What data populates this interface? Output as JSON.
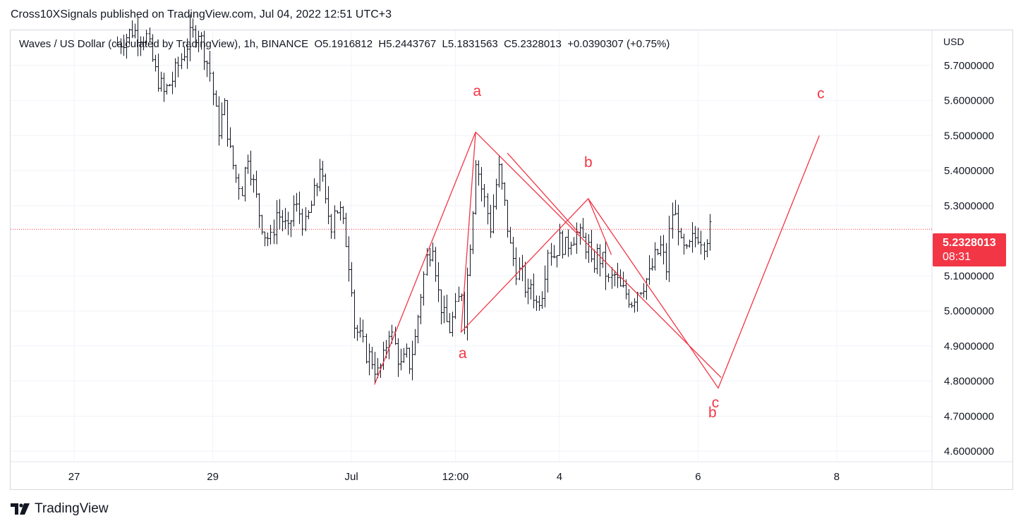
{
  "publisher": "Cross10XSignals published on TradingView.com, Jul 04, 2022 12:51 UTC+3",
  "legend": {
    "symbol": "Waves / US Dollar (calculated by TradingView), 1h, BINANCE",
    "open": "O5.1916812",
    "high": "H5.2443767",
    "low": "L5.1831563",
    "close": "C5.2328013",
    "change": "+0.0390307 (+0.75%)"
  },
  "currency": "USD",
  "last_price": "5.2328013",
  "countdown": "08:31",
  "brand": "TradingView",
  "colors": {
    "drawing": "#f23645",
    "candle": "#131722",
    "grid": "#f0f3fa",
    "price_line": "#f23645"
  },
  "chart_data": {
    "type": "bar",
    "style": "ohlc",
    "interval": "1h",
    "y_ticks": [
      "5.7000000",
      "5.6000000",
      "5.5000000",
      "5.4000000",
      "5.3000000",
      "5.1000000",
      "5.0000000",
      "4.9000000",
      "4.8000000",
      "4.7000000",
      "4.6000000"
    ],
    "y_tick_values": [
      5.7,
      5.6,
      5.5,
      5.4,
      5.3,
      5.1,
      5.0,
      4.9,
      4.8,
      4.7,
      4.6
    ],
    "x_ticks": [
      "27",
      "29",
      "Jul",
      "12:00",
      "4",
      "6",
      "8"
    ],
    "x_tick_index": [
      0,
      48,
      96,
      132,
      168,
      216,
      264
    ],
    "ylim": [
      4.57,
      5.8
    ],
    "xlim": [
      -22,
      297
    ],
    "price_line": 5.2328013,
    "close_path": [
      [
        15,
        5.76
      ],
      [
        20,
        5.8
      ],
      [
        25,
        5.78
      ],
      [
        28,
        5.68
      ],
      [
        31,
        5.62
      ],
      [
        34,
        5.66
      ],
      [
        37,
        5.72
      ],
      [
        40,
        5.78
      ],
      [
        43,
        5.8
      ],
      [
        45,
        5.74
      ],
      [
        47,
        5.68
      ],
      [
        49,
        5.56
      ],
      [
        50,
        5.52
      ],
      [
        52,
        5.58
      ],
      [
        54,
        5.45
      ],
      [
        56,
        5.38
      ],
      [
        58,
        5.35
      ],
      [
        60,
        5.45
      ],
      [
        62,
        5.36
      ],
      [
        64,
        5.28
      ],
      [
        66,
        5.22
      ],
      [
        68,
        5.2
      ],
      [
        70,
        5.28
      ],
      [
        72,
        5.26
      ],
      [
        74,
        5.22
      ],
      [
        76,
        5.3
      ],
      [
        78,
        5.28
      ],
      [
        80,
        5.24
      ],
      [
        82,
        5.3
      ],
      [
        84,
        5.36
      ],
      [
        85,
        5.42
      ],
      [
        87,
        5.3
      ],
      [
        89,
        5.25
      ],
      [
        90,
        5.3
      ],
      [
        92,
        5.28
      ],
      [
        94,
        5.2
      ],
      [
        96,
        5.08
      ],
      [
        97,
        4.96
      ],
      [
        99,
        4.92
      ],
      [
        101,
        4.88
      ],
      [
        103,
        4.86
      ],
      [
        105,
        4.82
      ],
      [
        107,
        4.86
      ],
      [
        109,
        4.95
      ],
      [
        111,
        4.9
      ],
      [
        113,
        4.84
      ],
      [
        115,
        4.87
      ],
      [
        116,
        4.85
      ],
      [
        118,
        4.92
      ],
      [
        120,
        5.05
      ],
      [
        122,
        5.15
      ],
      [
        124,
        5.2
      ],
      [
        126,
        5.05
      ],
      [
        128,
        4.98
      ],
      [
        130,
        4.95
      ],
      [
        132,
        5.0
      ],
      [
        134,
        5.06
      ],
      [
        135,
        4.98
      ],
      [
        136,
        5.1
      ],
      [
        138,
        5.3
      ],
      [
        139,
        5.44
      ],
      [
        141,
        5.35
      ],
      [
        143,
        5.28
      ],
      [
        144,
        5.24
      ],
      [
        146,
        5.36
      ],
      [
        147,
        5.4
      ],
      [
        149,
        5.3
      ],
      [
        151,
        5.18
      ],
      [
        153,
        5.12
      ],
      [
        155,
        5.1
      ],
      [
        157,
        5.04
      ],
      [
        158,
        5.08
      ],
      [
        160,
        5.02
      ],
      [
        162,
        5.06
      ],
      [
        164,
        5.18
      ],
      [
        166,
        5.16
      ],
      [
        168,
        5.2
      ],
      [
        170,
        5.18
      ],
      [
        172,
        5.21
      ],
      [
        174,
        5.22
      ],
      [
        176,
        5.2
      ],
      [
        178,
        5.18
      ],
      [
        179,
        5.12
      ],
      [
        181,
        5.16
      ],
      [
        183,
        5.14
      ],
      [
        185,
        5.08
      ],
      [
        187,
        5.1
      ],
      [
        189,
        5.06
      ],
      [
        191,
        5.05
      ],
      [
        193,
        5.03
      ],
      [
        195,
        5.06
      ],
      [
        197,
        5.08
      ],
      [
        199,
        5.1
      ],
      [
        201,
        5.15
      ],
      [
        203,
        5.18
      ],
      [
        205,
        5.12
      ],
      [
        206,
        5.22
      ],
      [
        207,
        5.28
      ],
      [
        209,
        5.25
      ],
      [
        210,
        5.18
      ],
      [
        212,
        5.16
      ],
      [
        214,
        5.2
      ],
      [
        216,
        5.22
      ],
      [
        218,
        5.2
      ],
      [
        220,
        5.23
      ]
    ],
    "annotations": [
      {
        "label": "a",
        "x": 139.5,
        "y": 5.613
      },
      {
        "label": "b",
        "x": 178,
        "y": 5.41
      },
      {
        "label": "c",
        "x": 258.5,
        "y": 5.606
      },
      {
        "label": "a",
        "x": 134.5,
        "y": 4.865
      },
      {
        "label": "c",
        "x": 222,
        "y": 4.725
      },
      {
        "label": "b",
        "x": 221,
        "y": 4.697
      }
    ],
    "drawing_lines": [
      [
        [
          104,
          4.79
        ],
        [
          139,
          5.51
        ],
        [
          134,
          4.94
        ],
        [
          178,
          5.32
        ],
        [
          223,
          4.78
        ],
        [
          258,
          5.5
        ]
      ],
      [
        [
          139,
          5.51
        ],
        [
          224,
          4.81
        ]
      ],
      [
        [
          150,
          5.45
        ],
        [
          175,
          5.22
        ]
      ],
      [
        [
          178,
          5.32
        ],
        [
          186,
          5.16
        ]
      ]
    ]
  }
}
